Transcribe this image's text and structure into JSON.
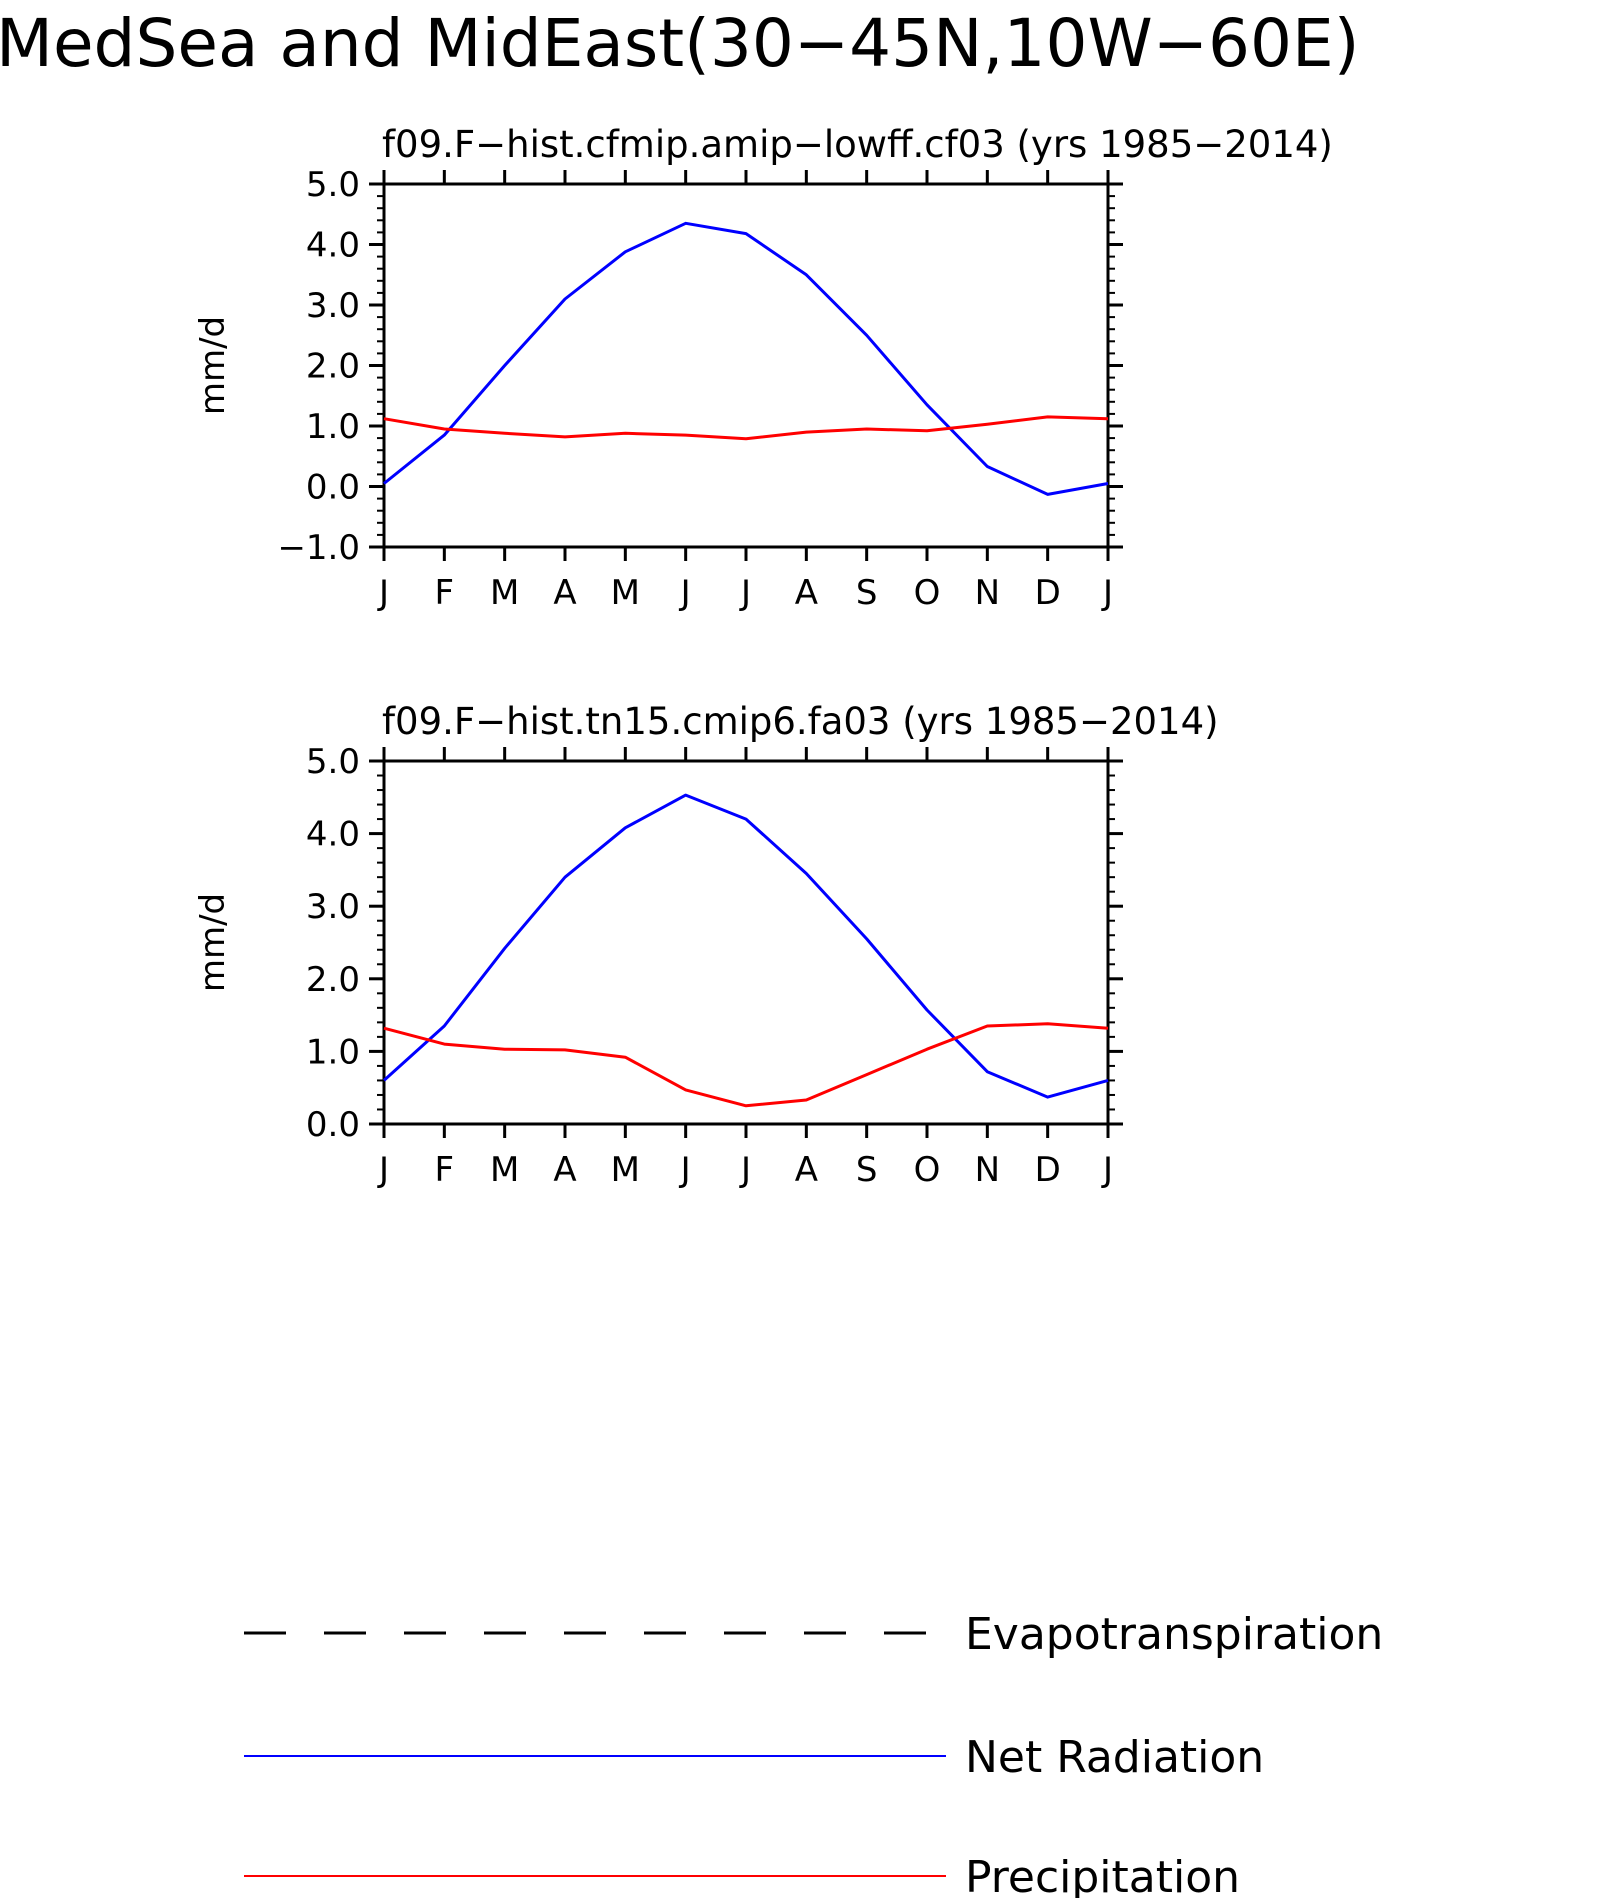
{
  "figure": {
    "title": "MedSea and MidEast(30−45N,10W−60E)"
  },
  "chart_data": [
    {
      "type": "line",
      "title": "f09.F−hist.cfmip.amip−lowff.cf03 (yrs 1985−2014)",
      "ylabel": "mm/d",
      "xlabel": "",
      "categories": [
        "J",
        "F",
        "M",
        "A",
        "M",
        "J",
        "J",
        "A",
        "S",
        "O",
        "N",
        "D",
        "J"
      ],
      "ylim": [
        -1.0,
        5.0
      ],
      "yticks": [
        -1.0,
        0.0,
        1.0,
        2.0,
        3.0,
        4.0,
        5.0
      ],
      "ytick_labels": [
        "−1.0",
        "0.0",
        "1.0",
        "2.0",
        "3.0",
        "4.0",
        "5.0"
      ],
      "series": [
        {
          "name": "Net Radiation",
          "color": "#0000ff",
          "values": [
            0.05,
            0.85,
            2.0,
            3.1,
            3.88,
            4.35,
            4.18,
            3.5,
            2.5,
            1.35,
            0.33,
            -0.13,
            0.05
          ]
        },
        {
          "name": "Precipitation",
          "color": "#ff0000",
          "values": [
            1.12,
            0.95,
            0.88,
            0.82,
            0.88,
            0.85,
            0.79,
            0.9,
            0.95,
            0.92,
            1.03,
            1.15,
            1.12
          ]
        }
      ],
      "grid": false
    },
    {
      "type": "line",
      "title": "f09.F−hist.tn15.cmip6.fa03 (yrs 1985−2014)",
      "ylabel": "mm/d",
      "xlabel": "",
      "categories": [
        "J",
        "F",
        "M",
        "A",
        "M",
        "J",
        "J",
        "A",
        "S",
        "O",
        "N",
        "D",
        "J"
      ],
      "ylim": [
        0.0,
        5.0
      ],
      "yticks": [
        0.0,
        1.0,
        2.0,
        3.0,
        4.0,
        5.0
      ],
      "ytick_labels": [
        "0.0",
        "1.0",
        "2.0",
        "3.0",
        "4.0",
        "5.0"
      ],
      "series": [
        {
          "name": "Net Radiation",
          "color": "#0000ff",
          "values": [
            0.6,
            1.35,
            2.42,
            3.4,
            4.08,
            4.53,
            4.2,
            3.45,
            2.55,
            1.57,
            0.72,
            0.37,
            0.6
          ]
        },
        {
          "name": "Precipitation",
          "color": "#ff0000",
          "values": [
            1.32,
            1.1,
            1.03,
            1.02,
            0.92,
            0.47,
            0.25,
            0.33,
            0.68,
            1.03,
            1.35,
            1.38,
            1.32
          ]
        }
      ],
      "grid": false
    }
  ],
  "legend": {
    "placement": "bottom",
    "items": [
      {
        "label": "Evapotranspiration",
        "color": "#000000",
        "dash": "dashed"
      },
      {
        "label": "Net Radiation",
        "color": "#0000ff",
        "dash": "solid"
      },
      {
        "label": "Precipitation",
        "color": "#ff0000",
        "dash": "solid"
      }
    ]
  }
}
